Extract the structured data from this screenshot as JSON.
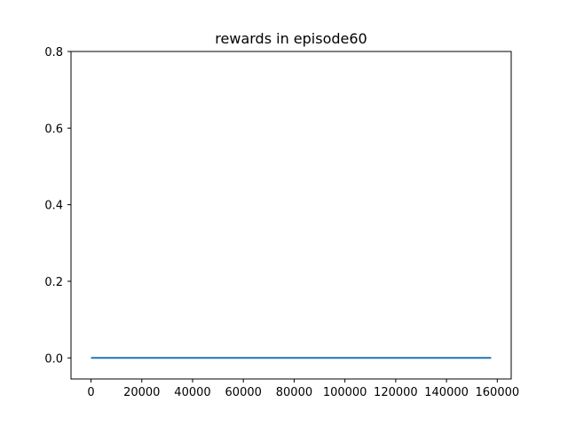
{
  "chart_data": {
    "type": "line",
    "title": "rewards in episode60",
    "xlabel": "",
    "ylabel": "",
    "xlim": [
      -7880,
      165480
    ],
    "ylim": [
      -0.055,
      0.8
    ],
    "xticks": [
      0,
      20000,
      40000,
      60000,
      80000,
      100000,
      120000,
      140000,
      160000
    ],
    "xtick_labels": [
      "0",
      "20000",
      "40000",
      "60000",
      "80000",
      "100000",
      "120000",
      "140000",
      "160000"
    ],
    "yticks": [
      0.0,
      0.2,
      0.4,
      0.6,
      0.8
    ],
    "ytick_labels": [
      "0.0",
      "0.2",
      "0.4",
      "0.6",
      "0.8"
    ],
    "grid": false,
    "series": [
      {
        "x": [
          0,
          157600
        ],
        "y": [
          0.0,
          0.0
        ],
        "color": "#1f77b4"
      }
    ]
  }
}
